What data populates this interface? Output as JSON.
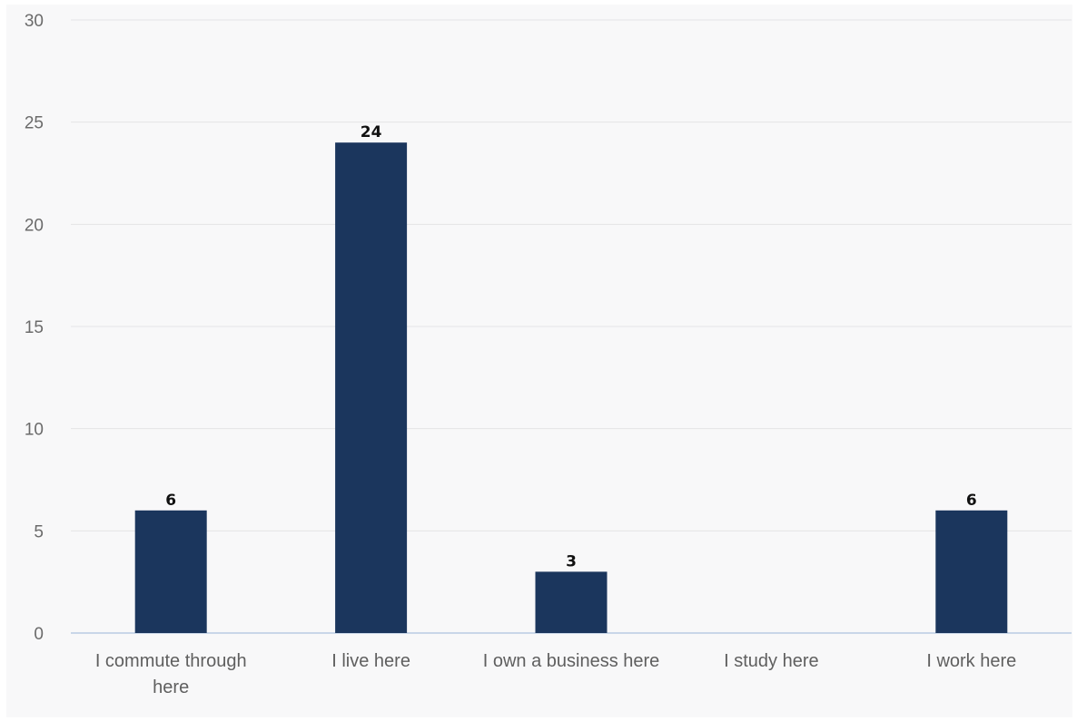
{
  "chart_data": {
    "type": "bar",
    "title": "",
    "xlabel": "",
    "ylabel": "",
    "categories": [
      [
        "I commute through",
        "here"
      ],
      [
        "I live here"
      ],
      [
        "I own a business here"
      ],
      [
        "I study here"
      ],
      [
        "I work here"
      ]
    ],
    "values": [
      6,
      24,
      3,
      0,
      6
    ],
    "data_labels": [
      "6",
      "24",
      "3",
      "",
      "6"
    ],
    "ylim": [
      0,
      30
    ],
    "yticks": [
      0,
      5,
      10,
      15,
      20,
      25,
      30
    ],
    "grid": true,
    "legend": "none",
    "colors": {
      "bar": "#1b365d",
      "grid": "#e3e3e6",
      "baseline": "#c9d6e8",
      "background": "#f8f8f9"
    }
  }
}
